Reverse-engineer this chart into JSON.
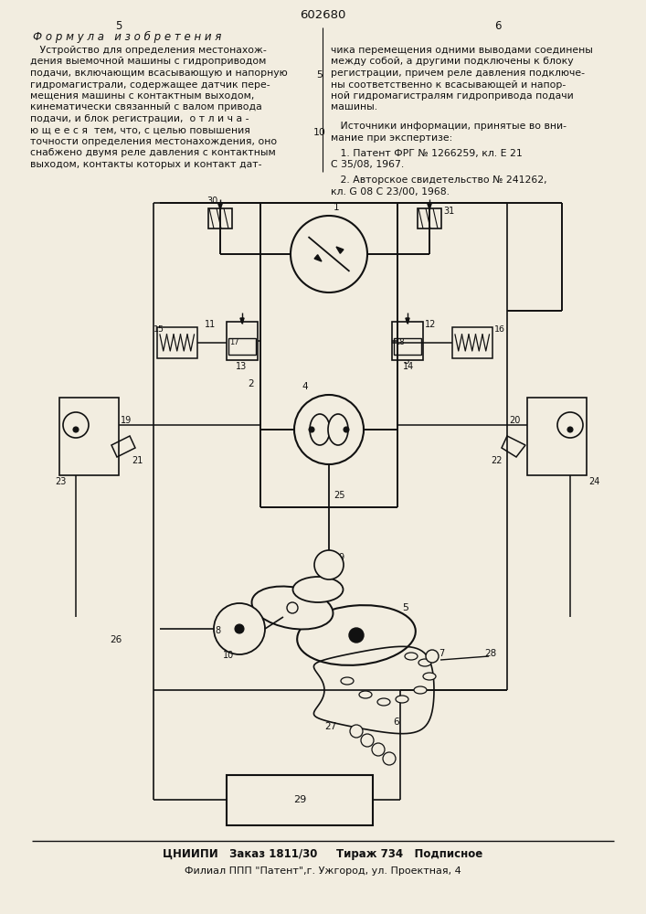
{
  "bg_color": "#f2ede0",
  "text_color": "#111111",
  "line_color": "#111111",
  "page_number": "602680",
  "page_left_num": "5",
  "page_right_num": "6",
  "formula_title": "Ф о р м у л а   и з о б р е т е н и я",
  "left_col": [
    "   Устройство для определения местонахож-",
    "дения выемочной машины с гидроприводом",
    "подачи, включающим всасывающую и напорную",
    "гидромагистрали, содержащее датчик пере-",
    "мещения машины с контактным выходом,",
    "кинематически связанный с валом привода",
    "подачи, и блок регистрации,  о т л и ч а -",
    "ю щ е е с я  тем, что, с целью повышения",
    "точности определения местонахождения, оно",
    "снабжено двумя реле давления с контактным",
    "выходом, контакты которых и контакт дат-"
  ],
  "right_col": [
    "чика перемещения одними выводами соединены",
    "между собой, а другими подключены к блоку",
    "регистрации, причем реле давления подключе-",
    "ны соответственно к всасывающей и напор-",
    "ной гидромагистралям гидропривода подачи",
    "машины."
  ],
  "src_hdr1": "   Источники информации, принятые во вни-",
  "src_hdr2": "мание при экспертизе:",
  "ref1a": "   1. Патент ФРГ № 1266259, кл. Е 21",
  "ref1b": "С 35/08, 1967.",
  "ref2a": "   2. Авторское свидетельство № 241262,",
  "ref2b": "кл. G 08 С 23/00, 1968.",
  "footer1": "ЦНИИПИ   Заказ 1811/30     Тираж 734   Подписное",
  "footer2": "Филиал ППП \"Патент\",г. Ужгород, ул. Проектная, 4"
}
